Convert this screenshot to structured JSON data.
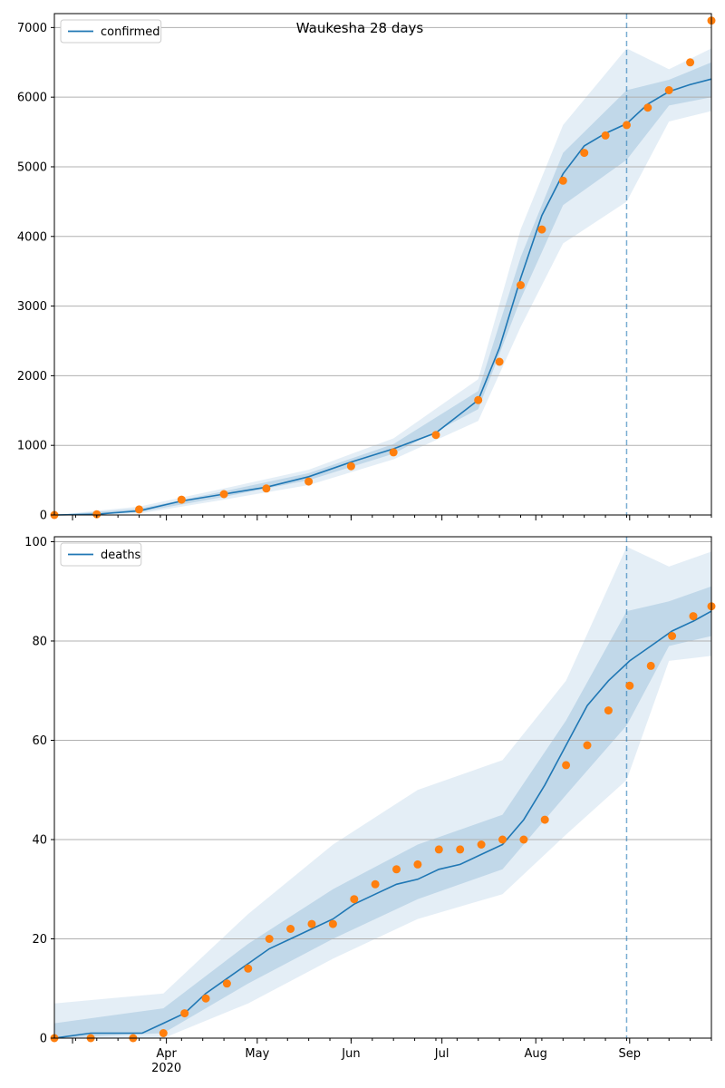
{
  "chart_data": [
    {
      "type": "line",
      "title": "Waukesha 28 days",
      "xlabel": "",
      "ylabel": "",
      "ylim": [
        0,
        7200
      ],
      "yticks": [
        0,
        1000,
        2000,
        3000,
        4000,
        5000,
        6000,
        7000
      ],
      "ytick_labels": [
        "0",
        "1000",
        "2000",
        "3000",
        "4000",
        "5000",
        "6000",
        "7000"
      ],
      "grid": "y",
      "legend_position": "upper left",
      "legend": [
        "confirmed"
      ],
      "forecast_start": "2020-08-31",
      "series": [
        {
          "name": "confirmed",
          "kind": "model line",
          "x": [
            "2020-02-24",
            "2020-03-09",
            "2020-03-23",
            "2020-04-06",
            "2020-04-20",
            "2020-05-04",
            "2020-05-18",
            "2020-06-01",
            "2020-06-15",
            "2020-06-29",
            "2020-07-13",
            "2020-07-20",
            "2020-07-27",
            "2020-08-03",
            "2020-08-10",
            "2020-08-17",
            "2020-08-24",
            "2020-08-31",
            "2020-09-07",
            "2020-09-14",
            "2020-09-21",
            "2020-09-28"
          ],
          "values": [
            0,
            10,
            60,
            200,
            300,
            400,
            550,
            760,
            950,
            1180,
            1650,
            2400,
            3400,
            4300,
            4900,
            5300,
            5480,
            5620,
            5900,
            6080,
            6180,
            6260
          ]
        },
        {
          "name": "confirmed",
          "kind": "observed points",
          "x": [
            "2020-02-24",
            "2020-03-09",
            "2020-03-23",
            "2020-04-06",
            "2020-04-20",
            "2020-05-04",
            "2020-05-18",
            "2020-06-01",
            "2020-06-15",
            "2020-06-29",
            "2020-07-13",
            "2020-07-20",
            "2020-07-27",
            "2020-08-03",
            "2020-08-10",
            "2020-08-17",
            "2020-08-24",
            "2020-08-31",
            "2020-09-07",
            "2020-09-14",
            "2020-09-21",
            "2020-09-28"
          ],
          "values": [
            0,
            10,
            80,
            220,
            300,
            380,
            480,
            700,
            900,
            1150,
            1650,
            2200,
            3300,
            4100,
            4800,
            5200,
            5450,
            5600,
            5850,
            6100,
            6500,
            7100
          ]
        }
      ],
      "band_90": {
        "x": [
          "2020-02-24",
          "2020-03-23",
          "2020-04-20",
          "2020-05-18",
          "2020-06-15",
          "2020-07-13",
          "2020-07-27",
          "2020-08-10",
          "2020-08-31",
          "2020-09-14",
          "2020-09-28"
        ],
        "lower": [
          0,
          20,
          220,
          430,
          800,
          1350,
          2700,
          3900,
          4500,
          5650,
          5800
        ],
        "upper": [
          0,
          120,
          380,
          650,
          1100,
          1950,
          4100,
          5600,
          6700,
          6400,
          6700
        ]
      },
      "band_50": {
        "x": [
          "2020-02-24",
          "2020-03-23",
          "2020-04-20",
          "2020-05-18",
          "2020-06-15",
          "2020-07-13",
          "2020-07-27",
          "2020-08-10",
          "2020-08-31",
          "2020-09-14",
          "2020-09-28"
        ],
        "lower": [
          0,
          40,
          260,
          500,
          880,
          1520,
          3100,
          4450,
          5100,
          5880,
          6000
        ],
        "upper": [
          0,
          90,
          340,
          600,
          1020,
          1780,
          3700,
          5200,
          6100,
          6250,
          6500
        ]
      }
    },
    {
      "type": "line",
      "title": "",
      "xlabel": "",
      "ylabel": "",
      "ylim": [
        0,
        101
      ],
      "yticks": [
        0,
        20,
        40,
        60,
        80,
        100
      ],
      "ytick_labels": [
        "0",
        "20",
        "40",
        "60",
        "80",
        "100"
      ],
      "grid": "y",
      "legend_position": "upper left",
      "legend": [
        "deaths"
      ],
      "forecast_start": "2020-08-31",
      "xtick_labels": [
        "Apr",
        "May",
        "Jun",
        "Jul",
        "Aug",
        "Sep"
      ],
      "xtick_year": "2020",
      "series": [
        {
          "name": "deaths",
          "kind": "model line",
          "x": [
            "2020-02-24",
            "2020-03-07",
            "2020-03-24",
            "2020-03-31",
            "2020-04-07",
            "2020-04-14",
            "2020-04-21",
            "2020-04-28",
            "2020-05-05",
            "2020-05-12",
            "2020-05-19",
            "2020-05-26",
            "2020-06-02",
            "2020-06-09",
            "2020-06-16",
            "2020-06-23",
            "2020-06-30",
            "2020-07-07",
            "2020-07-14",
            "2020-07-21",
            "2020-07-28",
            "2020-08-04",
            "2020-08-11",
            "2020-08-18",
            "2020-08-25",
            "2020-09-01",
            "2020-09-08",
            "2020-09-15",
            "2020-09-22",
            "2020-09-28"
          ],
          "values": [
            0,
            1,
            1,
            3,
            5,
            9,
            12,
            15,
            18,
            20,
            22,
            24,
            27,
            29,
            31,
            32,
            34,
            35,
            37,
            39,
            44,
            51,
            59,
            67,
            72,
            76,
            79,
            82,
            84,
            86
          ]
        },
        {
          "name": "deaths",
          "kind": "observed points",
          "x": [
            "2020-02-24",
            "2020-03-07",
            "2020-03-21",
            "2020-03-31",
            "2020-04-07",
            "2020-04-14",
            "2020-04-21",
            "2020-04-28",
            "2020-05-05",
            "2020-05-12",
            "2020-05-19",
            "2020-05-26",
            "2020-06-02",
            "2020-06-09",
            "2020-06-16",
            "2020-06-23",
            "2020-06-30",
            "2020-07-07",
            "2020-07-14",
            "2020-07-21",
            "2020-07-28",
            "2020-08-04",
            "2020-08-11",
            "2020-08-18",
            "2020-08-25",
            "2020-09-01",
            "2020-09-08",
            "2020-09-15",
            "2020-09-22",
            "2020-09-28"
          ],
          "values": [
            0,
            0,
            0,
            1,
            5,
            8,
            11,
            14,
            20,
            22,
            23,
            23,
            28,
            31,
            34,
            35,
            38,
            38,
            39,
            40,
            40,
            44,
            55,
            59,
            66,
            71,
            75,
            81,
            85,
            87
          ]
        }
      ],
      "band_90": {
        "x": [
          "2020-02-24",
          "2020-03-31",
          "2020-04-28",
          "2020-05-26",
          "2020-06-23",
          "2020-07-21",
          "2020-08-11",
          "2020-08-31",
          "2020-09-14",
          "2020-09-28"
        ],
        "lower": [
          0,
          0,
          7,
          16,
          24,
          29,
          41,
          52,
          76,
          77
        ],
        "upper": [
          7,
          9,
          25,
          39,
          50,
          56,
          72,
          99,
          95,
          98
        ]
      },
      "band_50": {
        "x": [
          "2020-02-24",
          "2020-03-31",
          "2020-04-28",
          "2020-05-26",
          "2020-06-23",
          "2020-07-21",
          "2020-08-11",
          "2020-08-31",
          "2020-09-14",
          "2020-09-28"
        ],
        "lower": [
          0,
          1,
          11,
          20,
          28,
          34,
          49,
          63,
          79,
          81
        ],
        "upper": [
          3,
          6,
          19,
          30,
          39,
          45,
          64,
          86,
          88,
          91
        ]
      }
    }
  ],
  "colors": {
    "line": "#1f77b4",
    "points": "#ff7f0e",
    "band": "#1f77b4",
    "grid": "#b0b0b0",
    "forecast_line": "#1f77b4"
  }
}
